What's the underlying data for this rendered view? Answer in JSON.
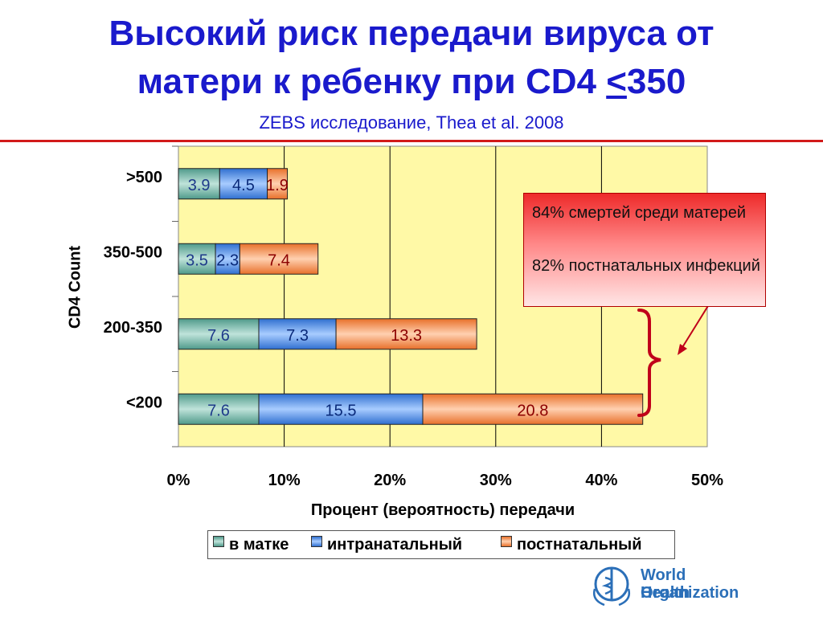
{
  "title_line1": "Высокий риск передачи вируса от",
  "title_line2_pre": "матери к ребенку при CD4 ",
  "title_line2_underlined": "<",
  "title_line2_post": "350",
  "subtitle": "ZEBS исследование, Thea et al. 2008",
  "callout": {
    "line1": "84% смертей среди матерей",
    "line2": "82% постнатальных инфекций"
  },
  "logo": {
    "line1": "World Health",
    "line2": "Organization",
    "icon": "who-emblem-icon"
  },
  "colors": {
    "title": "#1a1acc",
    "rule": "#d21a1a",
    "plot_bg": "#fff9a6",
    "in_utero": "#6fb8a8",
    "intrapartum": "#4f8fe6",
    "postnatal": "#f5873a",
    "callout_top": "#ee2a2a",
    "brace": "#c0001a"
  },
  "chart_data": {
    "type": "bar",
    "orientation": "horizontal",
    "stacked": true,
    "categories": [
      ">500",
      "350-500",
      "200-350",
      "<200"
    ],
    "series": [
      {
        "name": "в матке",
        "values": [
          3.9,
          3.5,
          7.6,
          7.6
        ],
        "label_color": "#1e3a8a"
      },
      {
        "name": "интранатальный",
        "values": [
          4.5,
          2.3,
          7.3,
          15.5
        ],
        "label_color": "#0a2a7a"
      },
      {
        "name": "постнатальный",
        "values": [
          1.9,
          7.4,
          13.3,
          20.8
        ],
        "label_color": "#8b0000"
      }
    ],
    "xlabel": "Процент (вероятность) передачи",
    "ylabel": "CD4 Count",
    "xlim": [
      0,
      50
    ],
    "xticks": [
      "0%",
      "10%",
      "20%",
      "30%",
      "40%",
      "50%"
    ],
    "grid": "vertical",
    "legend_position": "bottom"
  }
}
